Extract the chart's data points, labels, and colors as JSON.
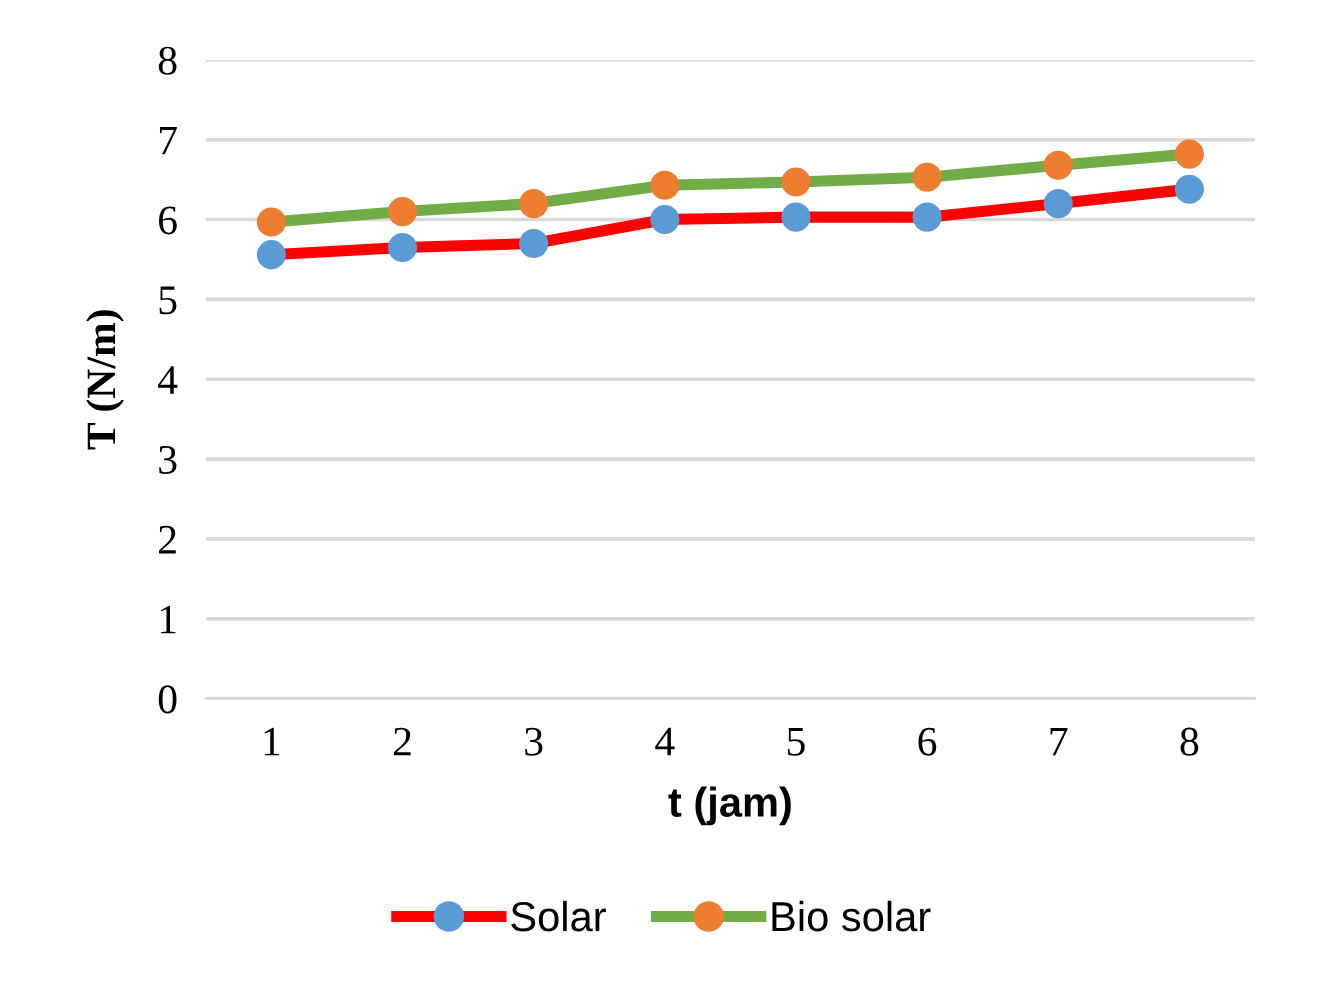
{
  "chart_data": {
    "type": "line",
    "xlabel": "t (jam)",
    "ylabel": "T (N/m)",
    "categories": [
      "1",
      "2",
      "3",
      "4",
      "5",
      "6",
      "7",
      "8"
    ],
    "series": [
      {
        "name": "Solar",
        "color": "#ff0000",
        "colors": [
          "#5b9bd5",
          "#5b9bd5",
          "#5b9bd5",
          "#5b9bd5",
          "#5b9bd5",
          "#5b9bd5",
          "#5b9bd5",
          "#5b9bd5"
        ],
        "values": [
          5.56,
          5.65,
          5.7,
          6.0,
          6.03,
          6.03,
          6.2,
          6.38
        ]
      },
      {
        "name": "Bio solar",
        "color": "#70ad47",
        "colors": [
          "#ed7d31",
          "#ed7d31",
          "#ed7d31",
          "#ed7d31",
          "#ed7d31",
          "#ed7d31",
          "#ed7d31",
          "#ed7d31"
        ],
        "values": [
          5.97,
          6.1,
          6.2,
          6.43,
          6.47,
          6.53,
          6.68,
          6.82
        ]
      }
    ],
    "ylim": [
      0,
      8
    ],
    "yticks": [
      0,
      1,
      2,
      3,
      4,
      5,
      6,
      7,
      8
    ],
    "grid": "y",
    "legend": "bottom",
    "marker": "circle",
    "line_style": "solid"
  }
}
